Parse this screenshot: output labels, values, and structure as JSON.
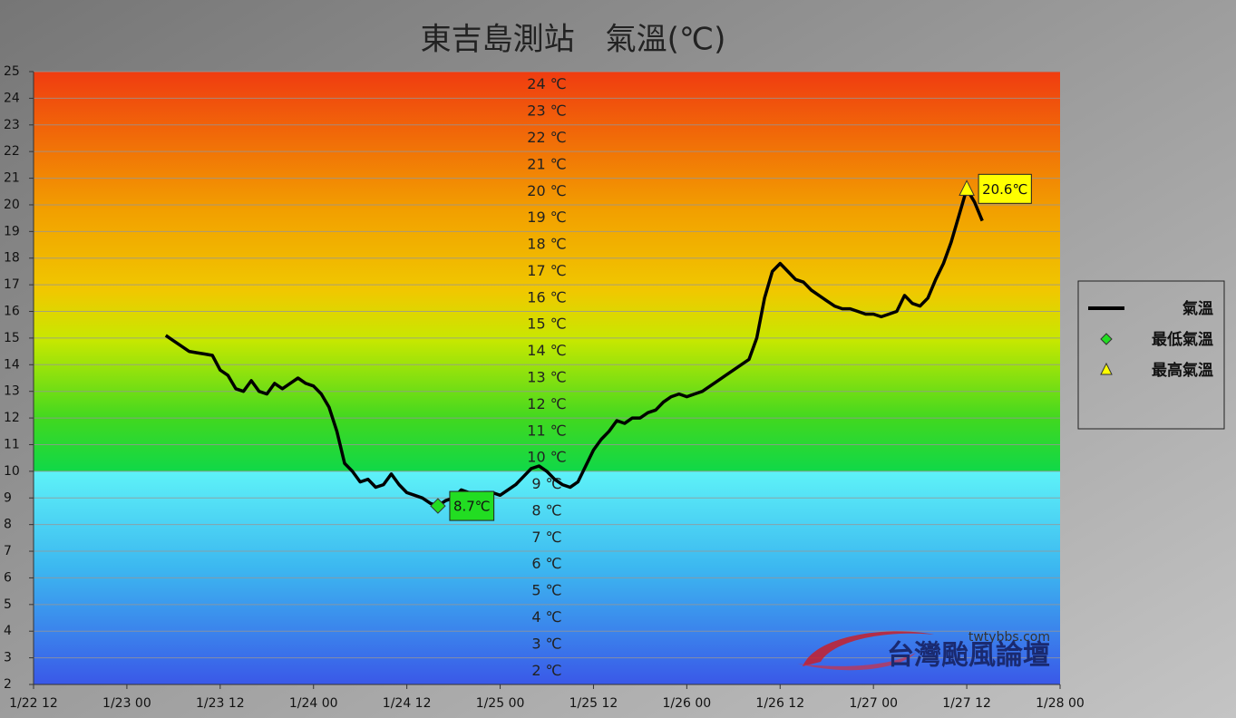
{
  "chart_data": {
    "type": "line",
    "title": "東吉島測站　氣溫(℃)",
    "xlim": [
      "1/22 12",
      "1/28 00"
    ],
    "xticks": [
      "1/22 12",
      "1/23 00",
      "1/23 12",
      "1/24 00",
      "1/24 12",
      "1/25 00",
      "1/25 12",
      "1/26 00",
      "1/26 12",
      "1/27 00",
      "1/27 12",
      "1/28 00"
    ],
    "ylim": [
      2,
      25
    ],
    "yticks": [
      2,
      3,
      4,
      5,
      6,
      7,
      8,
      9,
      10,
      11,
      12,
      13,
      14,
      15,
      16,
      17,
      18,
      19,
      20,
      21,
      22,
      23,
      24,
      25
    ],
    "grid": true,
    "band_labels": [
      {
        "value": 2,
        "label": "2 ℃"
      },
      {
        "value": 3,
        "label": "3 ℃"
      },
      {
        "value": 4,
        "label": "4 ℃"
      },
      {
        "value": 5,
        "label": "5 ℃"
      },
      {
        "value": 6,
        "label": "6 ℃"
      },
      {
        "value": 7,
        "label": "7 ℃"
      },
      {
        "value": 8,
        "label": "8 ℃"
      },
      {
        "value": 9,
        "label": "9 ℃"
      },
      {
        "value": 10,
        "label": "10 ℃"
      },
      {
        "value": 11,
        "label": "11 ℃"
      },
      {
        "value": 12,
        "label": "12 ℃"
      },
      {
        "value": 13,
        "label": "13 ℃"
      },
      {
        "value": 14,
        "label": "14 ℃"
      },
      {
        "value": 15,
        "label": "15 ℃"
      },
      {
        "value": 16,
        "label": "16 ℃"
      },
      {
        "value": 17,
        "label": "17 ℃"
      },
      {
        "value": 18,
        "label": "18 ℃"
      },
      {
        "value": 19,
        "label": "19 ℃"
      },
      {
        "value": 20,
        "label": "20 ℃"
      },
      {
        "value": 21,
        "label": "21 ℃"
      },
      {
        "value": 22,
        "label": "22 ℃"
      },
      {
        "value": 23,
        "label": "23 ℃"
      },
      {
        "value": 24,
        "label": "24 ℃"
      }
    ],
    "x": [
      "1/23 05",
      "1/23 06",
      "1/23 07",
      "1/23 08",
      "1/23 09",
      "1/23 10",
      "1/23 11",
      "1/23 12",
      "1/23 13",
      "1/23 14",
      "1/23 15",
      "1/23 16",
      "1/23 17",
      "1/23 18",
      "1/23 19",
      "1/23 20",
      "1/23 21",
      "1/23 22",
      "1/23 23",
      "1/24 00",
      "1/24 01",
      "1/24 02",
      "1/24 03",
      "1/24 04",
      "1/24 05",
      "1/24 06",
      "1/24 07",
      "1/24 08",
      "1/24 09",
      "1/24 10",
      "1/24 11",
      "1/24 12",
      "1/24 13",
      "1/24 14",
      "1/24 15",
      "1/24 16",
      "1/24 17",
      "1/24 18",
      "1/24 19",
      "1/24 20",
      "1/24 21",
      "1/24 22",
      "1/24 23",
      "1/25 00",
      "1/25 01",
      "1/25 02",
      "1/25 03",
      "1/25 04",
      "1/25 05",
      "1/25 06",
      "1/25 07",
      "1/25 08",
      "1/25 09",
      "1/25 10",
      "1/25 11",
      "1/25 12",
      "1/25 13",
      "1/25 14",
      "1/25 15",
      "1/25 16",
      "1/25 17",
      "1/25 18",
      "1/25 19",
      "1/25 20",
      "1/25 21",
      "1/25 22",
      "1/25 23",
      "1/26 00",
      "1/26 01",
      "1/26 02",
      "1/26 03",
      "1/26 04",
      "1/26 05",
      "1/26 06",
      "1/26 07",
      "1/26 08",
      "1/26 09",
      "1/26 10",
      "1/26 11",
      "1/26 12",
      "1/26 13",
      "1/26 14",
      "1/26 15",
      "1/26 16",
      "1/26 17",
      "1/26 18",
      "1/26 19",
      "1/26 20",
      "1/26 21",
      "1/26 22",
      "1/26 23",
      "1/27 00",
      "1/27 01",
      "1/27 02",
      "1/27 03",
      "1/27 04",
      "1/27 05",
      "1/27 06",
      "1/27 07",
      "1/27 08",
      "1/27 09",
      "1/27 10",
      "1/27 11",
      "1/27 12",
      "1/27 13",
      "1/27 14"
    ],
    "series": [
      {
        "name": "氣溫",
        "color": "#000000",
        "values": [
          15.1,
          14.9,
          14.7,
          14.5,
          14.45,
          14.4,
          14.35,
          13.8,
          13.6,
          13.1,
          13.0,
          13.4,
          13.0,
          12.9,
          13.3,
          13.1,
          13.3,
          13.5,
          13.3,
          13.2,
          12.9,
          12.4,
          11.5,
          10.3,
          10.0,
          9.6,
          9.7,
          9.4,
          9.5,
          9.9,
          9.5,
          9.2,
          9.1,
          9.0,
          8.8,
          8.7,
          8.9,
          9.0,
          9.3,
          9.2,
          9.1,
          9.2,
          9.2,
          9.1,
          9.3,
          9.5,
          9.8,
          10.1,
          10.2,
          10.0,
          9.7,
          9.5,
          9.4,
          9.6,
          10.2,
          10.8,
          11.2,
          11.5,
          11.9,
          11.8,
          12.0,
          12.0,
          12.2,
          12.3,
          12.6,
          12.8,
          12.9,
          12.8,
          12.9,
          13.0,
          13.2,
          13.4,
          13.6,
          13.8,
          14.0,
          14.2,
          15.0,
          16.5,
          17.5,
          17.8,
          17.5,
          17.2,
          17.1,
          16.8,
          16.6,
          16.4,
          16.2,
          16.1,
          16.1,
          16.0,
          15.9,
          15.9,
          15.8,
          15.9,
          16.0,
          16.6,
          16.3,
          16.2,
          16.5,
          17.2,
          17.8,
          18.6,
          19.6,
          20.6,
          20.1,
          19.4
        ]
      },
      {
        "name": "最低氣溫",
        "color": "#22dd22",
        "marker": "diamond",
        "x": [
          "1/24 16"
        ],
        "values": [
          8.7
        ],
        "value_labels": [
          "8.7℃"
        ]
      },
      {
        "name": "最高氣溫",
        "color": "#ffff00",
        "marker": "triangle",
        "x": [
          "1/27 12"
        ],
        "values": [
          20.6
        ],
        "value_labels": [
          "20.6℃"
        ]
      }
    ],
    "watermark": {
      "url": "twtybbs.com",
      "name": "台灣颱風論壇"
    }
  }
}
